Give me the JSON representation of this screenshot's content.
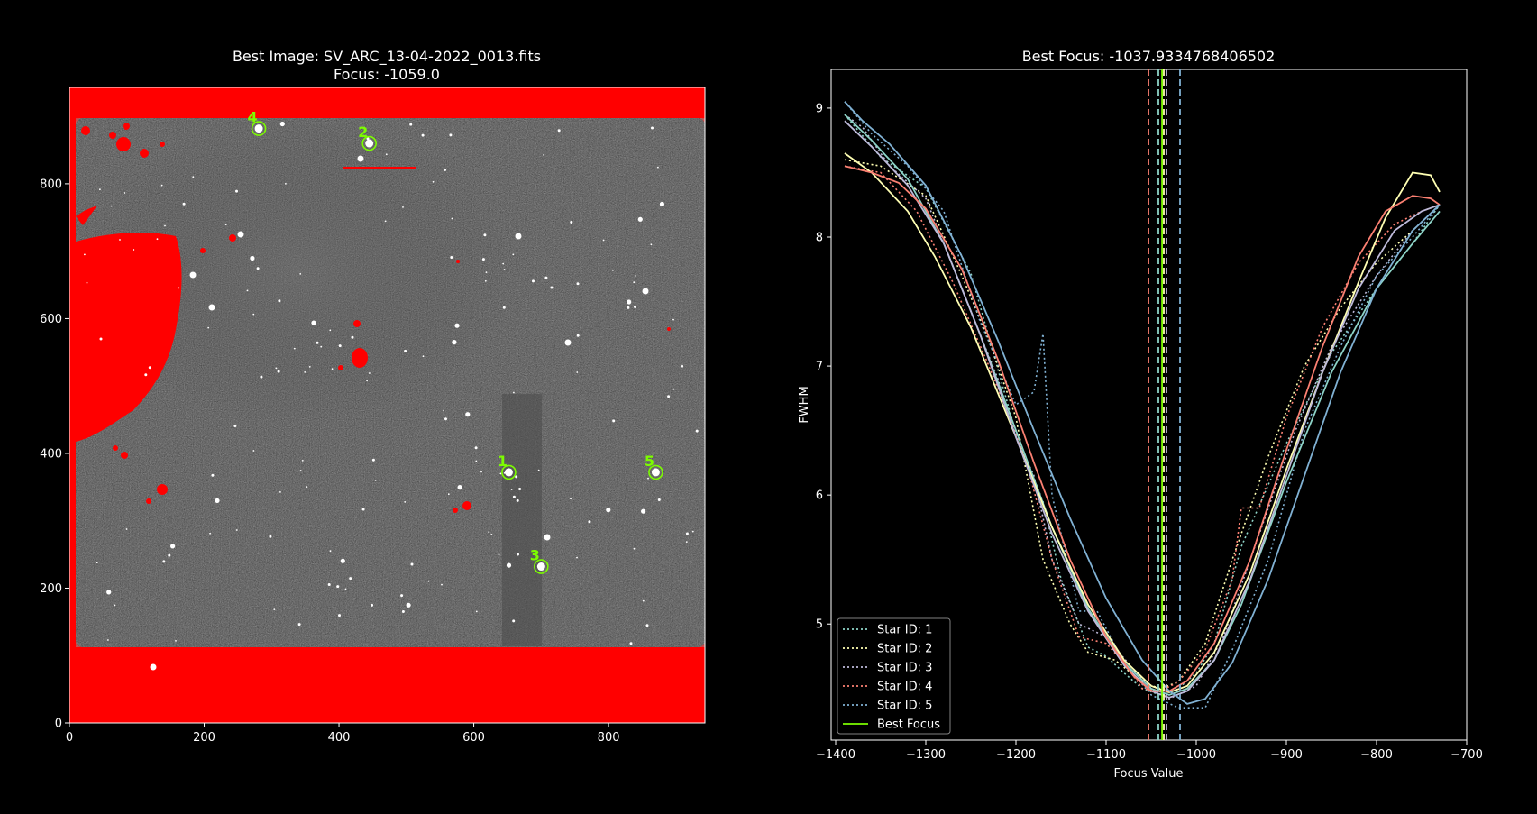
{
  "chart_data": [
    {
      "type": "image",
      "title": "Best Image: SV_ARC_13-04-2022_0013.fits",
      "subtitle": "Focus: -1059.0",
      "xlim": [
        0,
        943
      ],
      "ylim": [
        0,
        943
      ],
      "xticks": [
        0,
        200,
        400,
        600,
        800
      ],
      "yticks": [
        0,
        200,
        400,
        600,
        800
      ],
      "stars": [
        {
          "id": "1",
          "x": 652,
          "y": 372
        },
        {
          "id": "2",
          "x": 445,
          "y": 860
        },
        {
          "id": "3",
          "x": 700,
          "y": 232
        },
        {
          "id": "4",
          "x": 281,
          "y": 882
        },
        {
          "id": "5",
          "x": 870,
          "y": 372
        }
      ],
      "marker_color": "#7cfc00",
      "saturation_color": "#ff0000"
    },
    {
      "type": "line",
      "title": "Best Focus: -1037.9334768406502",
      "xlabel": "Focus Value",
      "ylabel": "FWHM",
      "xlim": [
        -1405,
        -700
      ],
      "ylim": [
        4.1,
        9.3
      ],
      "xticks": [
        -1400,
        -1300,
        -1200,
        -1100,
        -1000,
        -900,
        -800,
        -700
      ],
      "yticks": [
        5,
        6,
        7,
        8,
        9
      ],
      "grid": false,
      "legend_position": "lower-left",
      "best_focus": -1037.93,
      "best_focus_color": "#7cfc00",
      "best_focus_label": "Best Focus",
      "series": [
        {
          "name": "Star ID: 1",
          "color": "#8dd3c7",
          "vline": -1042,
          "points": [
            [
              -1390,
              8.95
            ],
            [
              -1350,
              8.62
            ],
            [
              -1300,
              8.38
            ],
            [
              -1250,
              7.72
            ],
            [
              -1200,
              6.48
            ],
            [
              -1170,
              5.95
            ],
            [
              -1150,
              5.35
            ],
            [
              -1120,
              4.82
            ],
            [
              -1100,
              4.75
            ],
            [
              -1080,
              4.62
            ],
            [
              -1060,
              4.5
            ],
            [
              -1040,
              4.45
            ],
            [
              -1020,
              4.5
            ],
            [
              -1000,
              4.62
            ],
            [
              -980,
              4.85
            ],
            [
              -950,
              5.6
            ],
            [
              -900,
              6.4
            ],
            [
              -850,
              7.1
            ],
            [
              -800,
              7.6
            ],
            [
              -760,
              7.95
            ],
            [
              -730,
              8.25
            ]
          ],
          "fit": [
            [
              -1390,
              8.95
            ],
            [
              -1360,
              8.75
            ],
            [
              -1320,
              8.45
            ],
            [
              -1280,
              7.95
            ],
            [
              -1240,
              7.25
            ],
            [
              -1200,
              6.5
            ],
            [
              -1160,
              5.75
            ],
            [
              -1120,
              5.12
            ],
            [
              -1080,
              4.7
            ],
            [
              -1050,
              4.5
            ],
            [
              -1030,
              4.45
            ],
            [
              -1010,
              4.5
            ],
            [
              -980,
              4.72
            ],
            [
              -950,
              5.15
            ],
            [
              -900,
              6.1
            ],
            [
              -850,
              6.95
            ],
            [
              -800,
              7.6
            ],
            [
              -760,
              7.95
            ],
            [
              -730,
              8.2
            ]
          ]
        },
        {
          "name": "Star ID: 2",
          "color": "#ffffb3",
          "vline": -1036,
          "points": [
            [
              -1390,
              8.6
            ],
            [
              -1350,
              8.55
            ],
            [
              -1300,
              8.32
            ],
            [
              -1260,
              7.7
            ],
            [
              -1230,
              7.2
            ],
            [
              -1200,
              6.6
            ],
            [
              -1170,
              5.5
            ],
            [
              -1140,
              5.0
            ],
            [
              -1120,
              4.78
            ],
            [
              -1090,
              4.72
            ],
            [
              -1060,
              4.55
            ],
            [
              -1040,
              4.5
            ],
            [
              -1020,
              4.55
            ],
            [
              -990,
              4.85
            ],
            [
              -960,
              5.5
            ],
            [
              -920,
              6.3
            ],
            [
              -880,
              7.0
            ],
            [
              -840,
              7.45
            ],
            [
              -800,
              7.8
            ],
            [
              -760,
              8.05
            ],
            [
              -730,
              8.25
            ]
          ],
          "fit": [
            [
              -1390,
              8.65
            ],
            [
              -1360,
              8.5
            ],
            [
              -1320,
              8.2
            ],
            [
              -1290,
              7.85
            ],
            [
              -1250,
              7.3
            ],
            [
              -1200,
              6.45
            ],
            [
              -1160,
              5.75
            ],
            [
              -1120,
              5.15
            ],
            [
              -1080,
              4.72
            ],
            [
              -1050,
              4.52
            ],
            [
              -1030,
              4.47
            ],
            [
              -1010,
              4.52
            ],
            [
              -980,
              4.78
            ],
            [
              -940,
              5.4
            ],
            [
              -900,
              6.2
            ],
            [
              -860,
              6.95
            ],
            [
              -820,
              7.65
            ],
            [
              -790,
              8.15
            ],
            [
              -760,
              8.5
            ],
            [
              -740,
              8.48
            ],
            [
              -730,
              8.35
            ]
          ]
        },
        {
          "name": "Star ID: 3",
          "color": "#bebada",
          "vline": -1033,
          "points": [
            [
              -1390,
              8.95
            ],
            [
              -1370,
              8.85
            ],
            [
              -1340,
              8.55
            ],
            [
              -1300,
              8.3
            ],
            [
              -1260,
              7.6
            ],
            [
              -1220,
              6.9
            ],
            [
              -1200,
              6.45
            ],
            [
              -1180,
              6.15
            ],
            [
              -1160,
              5.5
            ],
            [
              -1130,
              5.0
            ],
            [
              -1100,
              4.9
            ],
            [
              -1070,
              4.65
            ],
            [
              -1050,
              4.5
            ],
            [
              -1030,
              4.42
            ],
            [
              -1000,
              4.52
            ],
            [
              -970,
              4.9
            ],
            [
              -930,
              5.7
            ],
            [
              -890,
              6.5
            ],
            [
              -850,
              7.15
            ],
            [
              -800,
              7.7
            ],
            [
              -760,
              8.05
            ],
            [
              -730,
              8.25
            ]
          ],
          "fit": [
            [
              -1390,
              8.9
            ],
            [
              -1360,
              8.7
            ],
            [
              -1320,
              8.4
            ],
            [
              -1280,
              7.95
            ],
            [
              -1240,
              7.25
            ],
            [
              -1200,
              6.45
            ],
            [
              -1160,
              5.7
            ],
            [
              -1120,
              5.1
            ],
            [
              -1080,
              4.68
            ],
            [
              -1050,
              4.48
            ],
            [
              -1030,
              4.43
            ],
            [
              -1010,
              4.48
            ],
            [
              -980,
              4.72
            ],
            [
              -940,
              5.35
            ],
            [
              -900,
              6.15
            ],
            [
              -860,
              6.95
            ],
            [
              -820,
              7.6
            ],
            [
              -780,
              8.05
            ],
            [
              -750,
              8.2
            ],
            [
              -730,
              8.25
            ]
          ]
        },
        {
          "name": "Star ID: 4",
          "color": "#fb8072",
          "vline": -1053,
          "points": [
            [
              -1390,
              8.55
            ],
            [
              -1350,
              8.5
            ],
            [
              -1310,
              8.2
            ],
            [
              -1270,
              7.65
            ],
            [
              -1230,
              7.0
            ],
            [
              -1190,
              6.3
            ],
            [
              -1160,
              5.5
            ],
            [
              -1130,
              4.9
            ],
            [
              -1100,
              4.85
            ],
            [
              -1080,
              4.7
            ],
            [
              -1060,
              4.5
            ],
            [
              -1040,
              4.48
            ],
            [
              -1020,
              4.55
            ],
            [
              -990,
              4.8
            ],
            [
              -960,
              5.35
            ],
            [
              -950,
              5.9
            ],
            [
              -930,
              5.9
            ],
            [
              -900,
              6.6
            ],
            [
              -860,
              7.3
            ],
            [
              -820,
              7.8
            ],
            [
              -780,
              8.1
            ],
            [
              -750,
              8.2
            ],
            [
              -730,
              8.25
            ]
          ],
          "fit": [
            [
              -1390,
              8.55
            ],
            [
              -1360,
              8.5
            ],
            [
              -1330,
              8.42
            ],
            [
              -1300,
              8.22
            ],
            [
              -1260,
              7.75
            ],
            [
              -1220,
              7.05
            ],
            [
              -1180,
              6.25
            ],
            [
              -1140,
              5.5
            ],
            [
              -1100,
              4.9
            ],
            [
              -1070,
              4.6
            ],
            [
              -1050,
              4.48
            ],
            [
              -1030,
              4.48
            ],
            [
              -1010,
              4.56
            ],
            [
              -980,
              4.85
            ],
            [
              -940,
              5.5
            ],
            [
              -900,
              6.35
            ],
            [
              -860,
              7.15
            ],
            [
              -820,
              7.85
            ],
            [
              -790,
              8.2
            ],
            [
              -760,
              8.32
            ],
            [
              -740,
              8.3
            ],
            [
              -730,
              8.25
            ]
          ]
        },
        {
          "name": "Star ID: 5",
          "color": "#80b1d3",
          "vline": -1018,
          "points": [
            [
              -1390,
              9.05
            ],
            [
              -1360,
              8.8
            ],
            [
              -1320,
              8.55
            ],
            [
              -1280,
              8.2
            ],
            [
              -1240,
              7.35
            ],
            [
              -1200,
              6.7
            ],
            [
              -1180,
              6.8
            ],
            [
              -1170,
              7.25
            ],
            [
              -1160,
              6.0
            ],
            [
              -1130,
              5.1
            ],
            [
              -1110,
              5.1
            ],
            [
              -1080,
              4.7
            ],
            [
              -1050,
              4.45
            ],
            [
              -1020,
              4.35
            ],
            [
              -990,
              4.35
            ],
            [
              -960,
              4.8
            ],
            [
              -920,
              5.5
            ],
            [
              -880,
              6.5
            ],
            [
              -840,
              7.15
            ],
            [
              -800,
              7.7
            ],
            [
              -760,
              8.0
            ],
            [
              -730,
              8.25
            ]
          ],
          "fit": [
            [
              -1390,
              9.05
            ],
            [
              -1370,
              8.9
            ],
            [
              -1340,
              8.72
            ],
            [
              -1300,
              8.4
            ],
            [
              -1260,
              7.85
            ],
            [
              -1220,
              7.2
            ],
            [
              -1180,
              6.5
            ],
            [
              -1140,
              5.82
            ],
            [
              -1100,
              5.2
            ],
            [
              -1060,
              4.72
            ],
            [
              -1030,
              4.48
            ],
            [
              -1010,
              4.38
            ],
            [
              -990,
              4.42
            ],
            [
              -960,
              4.7
            ],
            [
              -920,
              5.35
            ],
            [
              -880,
              6.15
            ],
            [
              -840,
              6.95
            ],
            [
              -800,
              7.6
            ],
            [
              -760,
              8.05
            ],
            [
              -730,
              8.25
            ]
          ]
        }
      ]
    }
  ]
}
